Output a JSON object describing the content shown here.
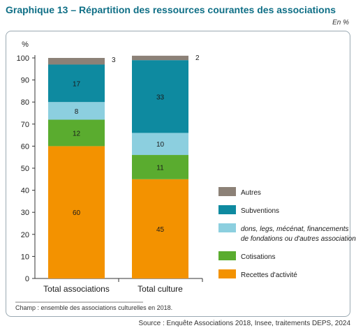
{
  "title": "Graphique 13 – Répartition des ressources courantes des associations",
  "unit_note": "En %",
  "note": "Champ : ensemble des associations culturelles en 2018.",
  "source": "Source : Enquête Associations 2018, Insee, traitements DEPS, 2024",
  "chart_data": {
    "type": "bar",
    "stacked": true,
    "ylabel": "%",
    "ylim": [
      0,
      100
    ],
    "yticks": [
      0,
      10,
      20,
      30,
      40,
      50,
      60,
      70,
      80,
      90,
      100
    ],
    "grid": false,
    "legend_position": "right",
    "categories": [
      "Total associations",
      "Total culture"
    ],
    "series": [
      {
        "name": "Recettes d'activité",
        "values": [
          60,
          45
        ],
        "color": "#f39200"
      },
      {
        "name": "Cotisations",
        "values": [
          12,
          11
        ],
        "color": "#5aac2f"
      },
      {
        "name": "dons, legs, mécénat, financements de fondations ou d'autres associations",
        "values": [
          8,
          10
        ],
        "color": "#8ccfdf"
      },
      {
        "name": "Subventions",
        "values": [
          17,
          33
        ],
        "color": "#0e8aa0"
      },
      {
        "name": "Autres",
        "values": [
          3,
          2
        ],
        "color": "#8c8177"
      }
    ],
    "legend_order": [
      "Autres",
      "Subventions",
      "dons, legs, mécénat, financements de fondations ou d'autres associations",
      "Cotisations",
      "Recettes d'activité"
    ],
    "legend_lines": {
      "dons, legs, mécénat, financements de fondations ou d'autres associations": [
        "dons, legs, mécénat, financements",
        "de fondations ou d'autres associations"
      ]
    }
  }
}
